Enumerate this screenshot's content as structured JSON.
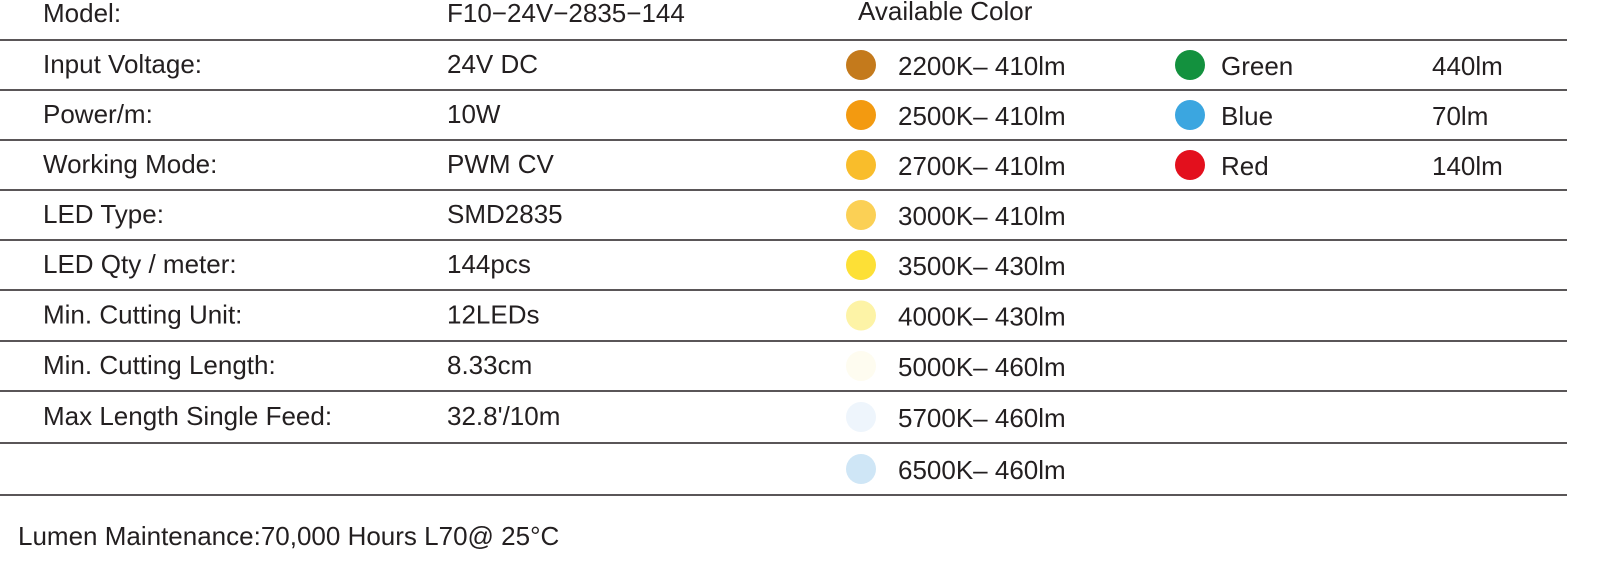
{
  "header": {
    "model_label": "Model:",
    "model_value": "F10−24V−2835−144",
    "available_color": "Available Color"
  },
  "specs": [
    {
      "label": "Input Voltage:",
      "value": "24V DC"
    },
    {
      "label": "Power/m:",
      "value": "10W"
    },
    {
      "label": "Working Mode:",
      "value": "PWM CV"
    },
    {
      "label": "LED Type:",
      "value": "SMD2835"
    },
    {
      "label": "LED Qty / meter:",
      "value": "144pcs"
    },
    {
      "label": "Min. Cutting Unit:",
      "value": "12LEDs"
    },
    {
      "label": "Min. Cutting Length:",
      "value": "8.33cm"
    },
    {
      "label": "Max Length Single Feed:",
      "value": "32.8'/10m"
    }
  ],
  "cct_colors": [
    {
      "color": "#c47a1c",
      "label": "2200K– 410lm"
    },
    {
      "color": "#f39a10",
      "label": "2500K– 410lm"
    },
    {
      "color": "#f9bd2b",
      "label": "2700K– 410lm"
    },
    {
      "color": "#fbd055",
      "label": "3000K– 410lm"
    },
    {
      "color": "#fde036",
      "label": "3500K– 430lm"
    },
    {
      "color": "#fdf3a6",
      "label": "4000K– 430lm"
    },
    {
      "color": "#fefcf0",
      "label": "5000K– 460lm"
    },
    {
      "color": "#eef5fc",
      "label": "5700K– 460lm"
    },
    {
      "color": "#cfe6f6",
      "label": "6500K– 460lm"
    }
  ],
  "rgb_colors": [
    {
      "color": "#13913e",
      "name": "Green",
      "lumen": "440lm"
    },
    {
      "color": "#3ba6e0",
      "name": "Blue",
      "lumen": "70lm"
    },
    {
      "color": "#e3101d",
      "name": "Red",
      "lumen": "140lm"
    }
  ],
  "footer": "Lumen Maintenance:70,000 Hours L70@ 25°C"
}
